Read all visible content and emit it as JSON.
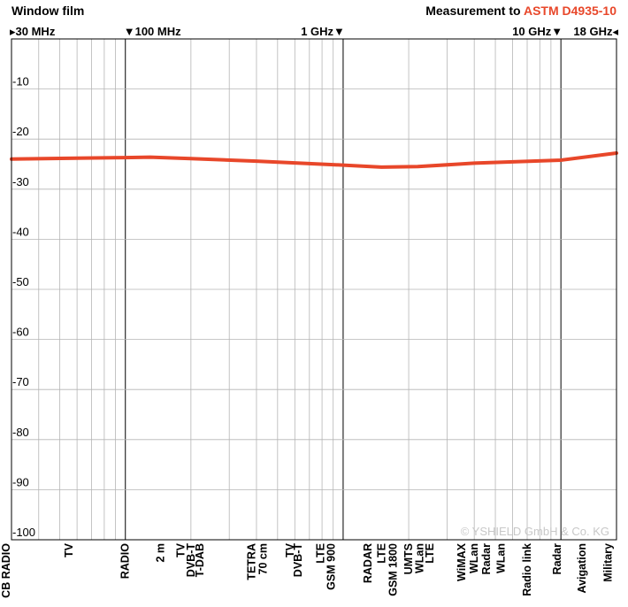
{
  "title_left": "Window film",
  "title_right_prefix": "Measurement to ",
  "title_right_standard": "ASTM D4935-10",
  "freq_markers": [
    {
      "label": "30 MHz",
      "mhz": 30,
      "marker": "▸",
      "side": "left"
    },
    {
      "label": "100 MHz",
      "mhz": 100,
      "marker": "▼",
      "side": "left"
    },
    {
      "label": "1 GHz",
      "mhz": 1000,
      "marker": "▼",
      "side": "right"
    },
    {
      "label": "10 GHz",
      "mhz": 10000,
      "marker": "▼",
      "side": "right"
    },
    {
      "label": "18 GHz",
      "mhz": 18000,
      "marker": "◂",
      "side": "right"
    }
  ],
  "watermark": "© YSHIELD GmbH & Co. KG",
  "colors": {
    "accent": "#e8472a",
    "grid": "#b5b5b5",
    "major_grid": "#000000"
  },
  "chart_data": {
    "type": "line",
    "title": "Window film",
    "x_scale": "log",
    "xlim_mhz": [
      30,
      18000
    ],
    "ylim": [
      -100,
      0
    ],
    "y_ticks": [
      -10,
      -20,
      -30,
      -40,
      -50,
      -60,
      -70,
      -80,
      -90,
      -100
    ],
    "grid": true,
    "series": [
      {
        "color": "#e8472a",
        "x_mhz": [
          30,
          60,
          100,
          130,
          200,
          400,
          1000,
          1500,
          2200,
          4000,
          10000,
          18000
        ],
        "y_db": [
          -24,
          -23.8,
          -23.7,
          -23.6,
          -23.9,
          -24.4,
          -25.2,
          -25.6,
          -25.5,
          -24.8,
          -24.2,
          -22.8
        ]
      }
    ],
    "bands": [
      {
        "mhz": 27,
        "label": "CB RADIO"
      },
      {
        "mhz": 55,
        "label": "TV"
      },
      {
        "mhz": 100,
        "label": "RADIO"
      },
      {
        "mhz": 145,
        "label": "2 m"
      },
      {
        "mhz": 180,
        "label": "TV"
      },
      {
        "mhz": 200,
        "label": "DVB-T"
      },
      {
        "mhz": 220,
        "label": "T-DAB"
      },
      {
        "mhz": 380,
        "label": "TETRA"
      },
      {
        "mhz": 430,
        "label": "70 cm"
      },
      {
        "mhz": 570,
        "label": "TV"
      },
      {
        "mhz": 620,
        "label": "DVB-T"
      },
      {
        "mhz": 790,
        "label": "LTE"
      },
      {
        "mhz": 880,
        "label": "GSM 900"
      },
      {
        "mhz": 1300,
        "label": "RADAR"
      },
      {
        "mhz": 1500,
        "label": "LTE"
      },
      {
        "mhz": 1700,
        "label": "GSM 1800"
      },
      {
        "mhz": 2000,
        "label": "UMTS"
      },
      {
        "mhz": 2250,
        "label": "WLan"
      },
      {
        "mhz": 2500,
        "label": "LTE"
      },
      {
        "mhz": 3500,
        "label": "WiMAX"
      },
      {
        "mhz": 4000,
        "label": "WLan"
      },
      {
        "mhz": 4550,
        "label": "Radar"
      },
      {
        "mhz": 5300,
        "label": "WLan"
      },
      {
        "mhz": 7000,
        "label": "Radio link"
      },
      {
        "mhz": 9600,
        "label": "Radar"
      },
      {
        "mhz": 12500,
        "label": "Avigation"
      },
      {
        "mhz": 16500,
        "label": "Military"
      }
    ]
  }
}
